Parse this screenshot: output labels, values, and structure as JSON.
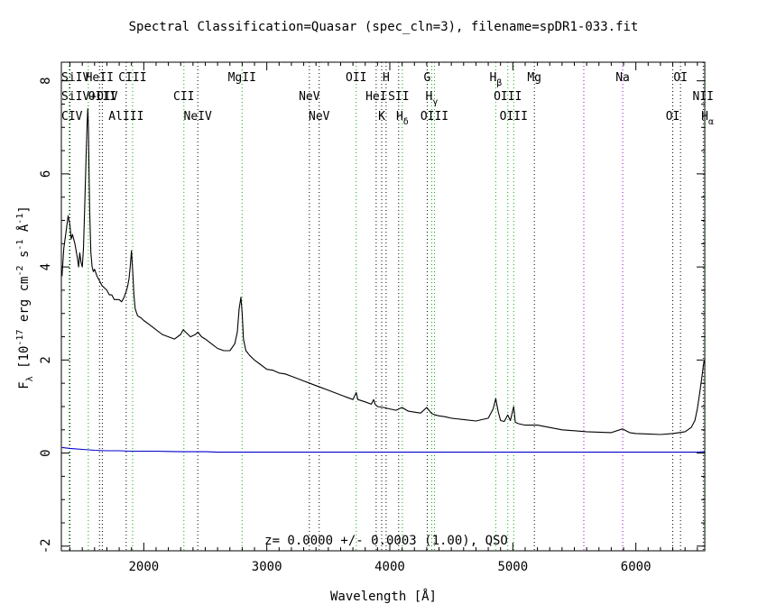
{
  "chart_data": {
    "type": "line",
    "title": "Spectral Classification=Quasar (spec_cln=3), filename=spDR1-033.fit",
    "xlabel": "Wavelength [Å]",
    "ylabel_parts": [
      "F",
      "λ",
      " [10",
      "-17",
      " erg cm",
      "-2",
      " s",
      "-1",
      " Å",
      "-1",
      "]"
    ],
    "annotation": "z= 0.0000 +/- 0.0003 (1.00), QSO",
    "xlim": [
      1330,
      6560
    ],
    "ylim": [
      -2.1,
      8.4
    ],
    "x_ticks": [
      2000,
      3000,
      4000,
      5000,
      6000
    ],
    "y_ticks": [
      -2,
      0,
      2,
      4,
      6,
      8
    ],
    "grid": false,
    "colors": {
      "spectrum": "#000000",
      "error": "#0000cc",
      "green_line": "#00b000",
      "black_line": "#000000",
      "purple_line": "#9900cc"
    },
    "series": [
      {
        "name": "spectrum",
        "x": [
          1335,
          1350,
          1370,
          1385,
          1400,
          1410,
          1420,
          1440,
          1460,
          1470,
          1480,
          1490,
          1500,
          1510,
          1520,
          1530,
          1540,
          1545,
          1550,
          1555,
          1560,
          1570,
          1580,
          1590,
          1600,
          1620,
          1640,
          1660,
          1680,
          1700,
          1720,
          1740,
          1760,
          1780,
          1800,
          1820,
          1840,
          1860,
          1870,
          1880,
          1890,
          1900,
          1910,
          1920,
          1930,
          1950,
          1980,
          2000,
          2050,
          2100,
          2150,
          2200,
          2250,
          2300,
          2320,
          2340,
          2380,
          2420,
          2440,
          2470,
          2500,
          2550,
          2600,
          2650,
          2700,
          2740,
          2760,
          2775,
          2790,
          2800,
          2810,
          2830,
          2860,
          2900,
          2950,
          3000,
          3050,
          3100,
          3150,
          3200,
          3250,
          3300,
          3350,
          3400,
          3450,
          3500,
          3550,
          3600,
          3650,
          3700,
          3727,
          3740,
          3800,
          3850,
          3869,
          3880,
          3900,
          3950,
          4000,
          4050,
          4100,
          4150,
          4200,
          4250,
          4300,
          4340,
          4370,
          4400,
          4450,
          4500,
          4600,
          4700,
          4800,
          4840,
          4861,
          4880,
          4900,
          4930,
          4959,
          4980,
          5007,
          5020,
          5050,
          5100,
          5200,
          5300,
          5400,
          5500,
          5600,
          5700,
          5800,
          5890,
          5950,
          6000,
          6100,
          6200,
          6300,
          6400,
          6450,
          6480,
          6500,
          6520,
          6540,
          6550,
          6560
        ],
        "y": [
          3.8,
          4.4,
          4.8,
          5.1,
          4.9,
          4.6,
          4.7,
          4.5,
          4.2,
          4.0,
          4.3,
          4.1,
          4.0,
          4.4,
          5.3,
          6.3,
          7.1,
          7.4,
          7.0,
          6.0,
          5.2,
          4.3,
          4.0,
          3.9,
          3.95,
          3.8,
          3.7,
          3.6,
          3.55,
          3.5,
          3.4,
          3.4,
          3.3,
          3.3,
          3.3,
          3.25,
          3.35,
          3.5,
          3.6,
          3.75,
          4.0,
          4.35,
          3.9,
          3.4,
          3.1,
          2.95,
          2.9,
          2.85,
          2.75,
          2.65,
          2.55,
          2.5,
          2.45,
          2.55,
          2.65,
          2.6,
          2.5,
          2.55,
          2.6,
          2.5,
          2.45,
          2.35,
          2.25,
          2.2,
          2.2,
          2.35,
          2.6,
          3.1,
          3.35,
          3.0,
          2.45,
          2.2,
          2.1,
          2.0,
          1.9,
          1.8,
          1.78,
          1.72,
          1.7,
          1.65,
          1.6,
          1.55,
          1.5,
          1.45,
          1.4,
          1.35,
          1.3,
          1.25,
          1.2,
          1.15,
          1.3,
          1.15,
          1.1,
          1.05,
          1.15,
          1.05,
          1.0,
          0.98,
          0.95,
          0.92,
          0.98,
          0.9,
          0.88,
          0.86,
          0.98,
          0.85,
          0.82,
          0.8,
          0.78,
          0.75,
          0.72,
          0.69,
          0.75,
          0.95,
          1.17,
          0.9,
          0.7,
          0.68,
          0.82,
          0.7,
          1.0,
          0.66,
          0.63,
          0.6,
          0.6,
          0.55,
          0.5,
          0.48,
          0.46,
          0.45,
          0.44,
          0.52,
          0.44,
          0.42,
          0.41,
          0.4,
          0.42,
          0.46,
          0.55,
          0.7,
          0.95,
          1.3,
          1.7,
          1.9,
          2.0
        ]
      },
      {
        "name": "error",
        "x": [
          1335,
          1400,
          1500,
          1600,
          1700,
          1800,
          1900,
          2000,
          2100,
          2200,
          2300,
          2400,
          2500,
          2600,
          2800,
          3000,
          3500,
          4000,
          5000,
          6000,
          6400,
          6500,
          6560
        ],
        "y": [
          0.12,
          0.1,
          0.08,
          0.06,
          0.05,
          0.05,
          0.04,
          0.04,
          0.04,
          0.035,
          0.03,
          0.03,
          0.03,
          0.02,
          0.02,
          0.02,
          0.02,
          0.02,
          0.02,
          0.02,
          0.02,
          0.02,
          0.03
        ]
      }
    ],
    "line_markers": [
      {
        "x": 1393,
        "color": "green",
        "label": "SiIV",
        "row": 1
      },
      {
        "x": 1400,
        "color": "black",
        "label": "SiIV+OIV",
        "row": 2
      },
      {
        "x": 1549,
        "color": "green",
        "label": "CIV",
        "row": 3
      },
      {
        "x": 1640,
        "color": "black",
        "label": "HeII",
        "row": 1
      },
      {
        "x": 1663,
        "color": "black",
        "label": "OIII",
        "row": 2
      },
      {
        "x": 1857,
        "color": "black",
        "label": "AlIII",
        "row": 3
      },
      {
        "x": 1909,
        "color": "green",
        "label": "CIII",
        "row": 1
      },
      {
        "x": 2326,
        "color": "green",
        "label": "CII",
        "row": 2
      },
      {
        "x": 2439,
        "color": "black",
        "label": "NeIV",
        "row": 3
      },
      {
        "x": 2799,
        "color": "green",
        "label": "MgII",
        "row": 1
      },
      {
        "x": 3346,
        "color": "black",
        "label": "NeV",
        "row": 2
      },
      {
        "x": 3426,
        "color": "black",
        "label": "NeV",
        "row": 3
      },
      {
        "x": 3727,
        "color": "green",
        "label": "OII",
        "row": 1
      },
      {
        "x": 3889,
        "color": "black",
        "label": "HeI",
        "row": 2
      },
      {
        "x": 3934,
        "color": "black",
        "label": "K",
        "row": 3
      },
      {
        "x": 3970,
        "color": "black",
        "label": "H",
        "row": 1
      },
      {
        "x": 4072,
        "color": "black",
        "label": "SII",
        "row": 2
      },
      {
        "x": 4102,
        "color": "green",
        "label": "Hδ",
        "row": 3
      },
      {
        "x": 4304,
        "color": "black",
        "label": "G",
        "row": 1
      },
      {
        "x": 4341,
        "color": "green",
        "label": "Hγ",
        "row": 2
      },
      {
        "x": 4363,
        "color": "green",
        "label": "OIII",
        "row": 3
      },
      {
        "x": 4861,
        "color": "green",
        "label": "Hβ",
        "row": 1
      },
      {
        "x": 4959,
        "color": "green",
        "label": "OIII",
        "row": 2
      },
      {
        "x": 5007,
        "color": "green",
        "label": "OIII",
        "row": 3
      },
      {
        "x": 5175,
        "color": "black",
        "label": "Mg",
        "row": 1
      },
      {
        "x": 5577,
        "color": "purple",
        "label": "",
        "row": 0
      },
      {
        "x": 5893,
        "color": "purple",
        "label": "Na",
        "row": 1
      },
      {
        "x": 6300,
        "color": "black",
        "label": "OI",
        "row": 3
      },
      {
        "x": 6363,
        "color": "black",
        "label": "OI",
        "row": 1
      },
      {
        "x": 6548,
        "color": "black",
        "label": "NII",
        "row": 2
      },
      {
        "x": 6563,
        "color": "green",
        "label": "Hα",
        "row": 3
      }
    ]
  }
}
